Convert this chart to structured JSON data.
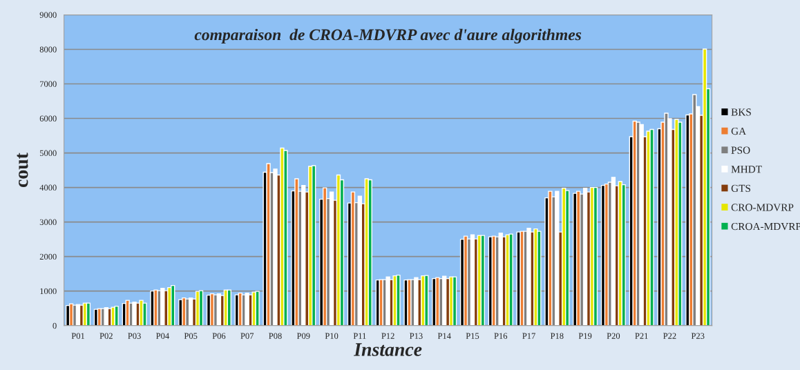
{
  "chart_data": {
    "type": "bar",
    "title": "comparaison  de CROA-MDVRP avec d'aure algorithmes",
    "xlabel": "Instance",
    "ylabel": "cout",
    "categories": [
      "P01",
      "P02",
      "P03",
      "P04",
      "P05",
      "P06",
      "P07",
      "P08",
      "P09",
      "P10",
      "P11",
      "P12",
      "P13",
      "P14",
      "P15",
      "P16",
      "P17",
      "P18",
      "P19",
      "P20",
      "P21",
      "P22",
      "P23"
    ],
    "series": [
      {
        "name": "BKS",
        "color": "#000000",
        "values": [
          580,
          470,
          640,
          1000,
          750,
          880,
          890,
          4440,
          3900,
          3660,
          3550,
          1320,
          1320,
          1360,
          2500,
          2570,
          2710,
          3700,
          3830,
          4060,
          5470,
          5700,
          6100
        ]
      },
      {
        "name": "GA",
        "color": "#ed7d31",
        "values": [
          630,
          490,
          730,
          1030,
          800,
          920,
          940,
          4690,
          4250,
          3990,
          3870,
          1330,
          1330,
          1390,
          2590,
          2590,
          2730,
          3890,
          3890,
          4100,
          5920,
          5890,
          6130
        ]
      },
      {
        "name": "PSO",
        "color": "#7f7f7f",
        "values": [
          590,
          490,
          650,
          1010,
          770,
          890,
          890,
          4430,
          3890,
          3680,
          3560,
          1330,
          1330,
          1360,
          2510,
          2570,
          2730,
          3730,
          3810,
          4150,
          5890,
          6150,
          6690
        ]
      },
      {
        "name": "MHDT",
        "color": "#ffffff",
        "values": [
          610,
          520,
          680,
          1080,
          800,
          920,
          940,
          4530,
          4060,
          3870,
          3750,
          1410,
          1390,
          1430,
          2630,
          2680,
          2820,
          3890,
          3980,
          4290,
          5820,
          5990,
          6340
        ]
      },
      {
        "name": "GTS",
        "color": "#843c0c",
        "values": [
          590,
          490,
          650,
          1010,
          770,
          870,
          890,
          4360,
          3870,
          3630,
          3530,
          1330,
          1330,
          1360,
          2510,
          2570,
          2710,
          2710,
          3870,
          4050,
          5470,
          5680,
          6090
        ]
      },
      {
        "name": "CRO-MDVRP",
        "color": "#e6e600",
        "values": [
          650,
          530,
          730,
          1100,
          990,
          1030,
          970,
          5140,
          4610,
          4360,
          4250,
          1440,
          1440,
          1410,
          2610,
          2630,
          2800,
          3980,
          4000,
          4170,
          5630,
          5970,
          8010
        ]
      },
      {
        "name": "CROA-MDVRP",
        "color": "#00b050",
        "values": [
          650,
          560,
          650,
          1160,
          1010,
          1030,
          990,
          5070,
          4630,
          4220,
          4220,
          1460,
          1450,
          1410,
          2610,
          2650,
          2730,
          3910,
          4000,
          4080,
          5680,
          5890,
          6860
        ]
      }
    ],
    "ylim": [
      0,
      9000
    ],
    "yticks": [
      0,
      1000,
      2000,
      3000,
      4000,
      5000,
      6000,
      7000,
      8000,
      9000
    ],
    "grid": "y",
    "legend": "right"
  }
}
